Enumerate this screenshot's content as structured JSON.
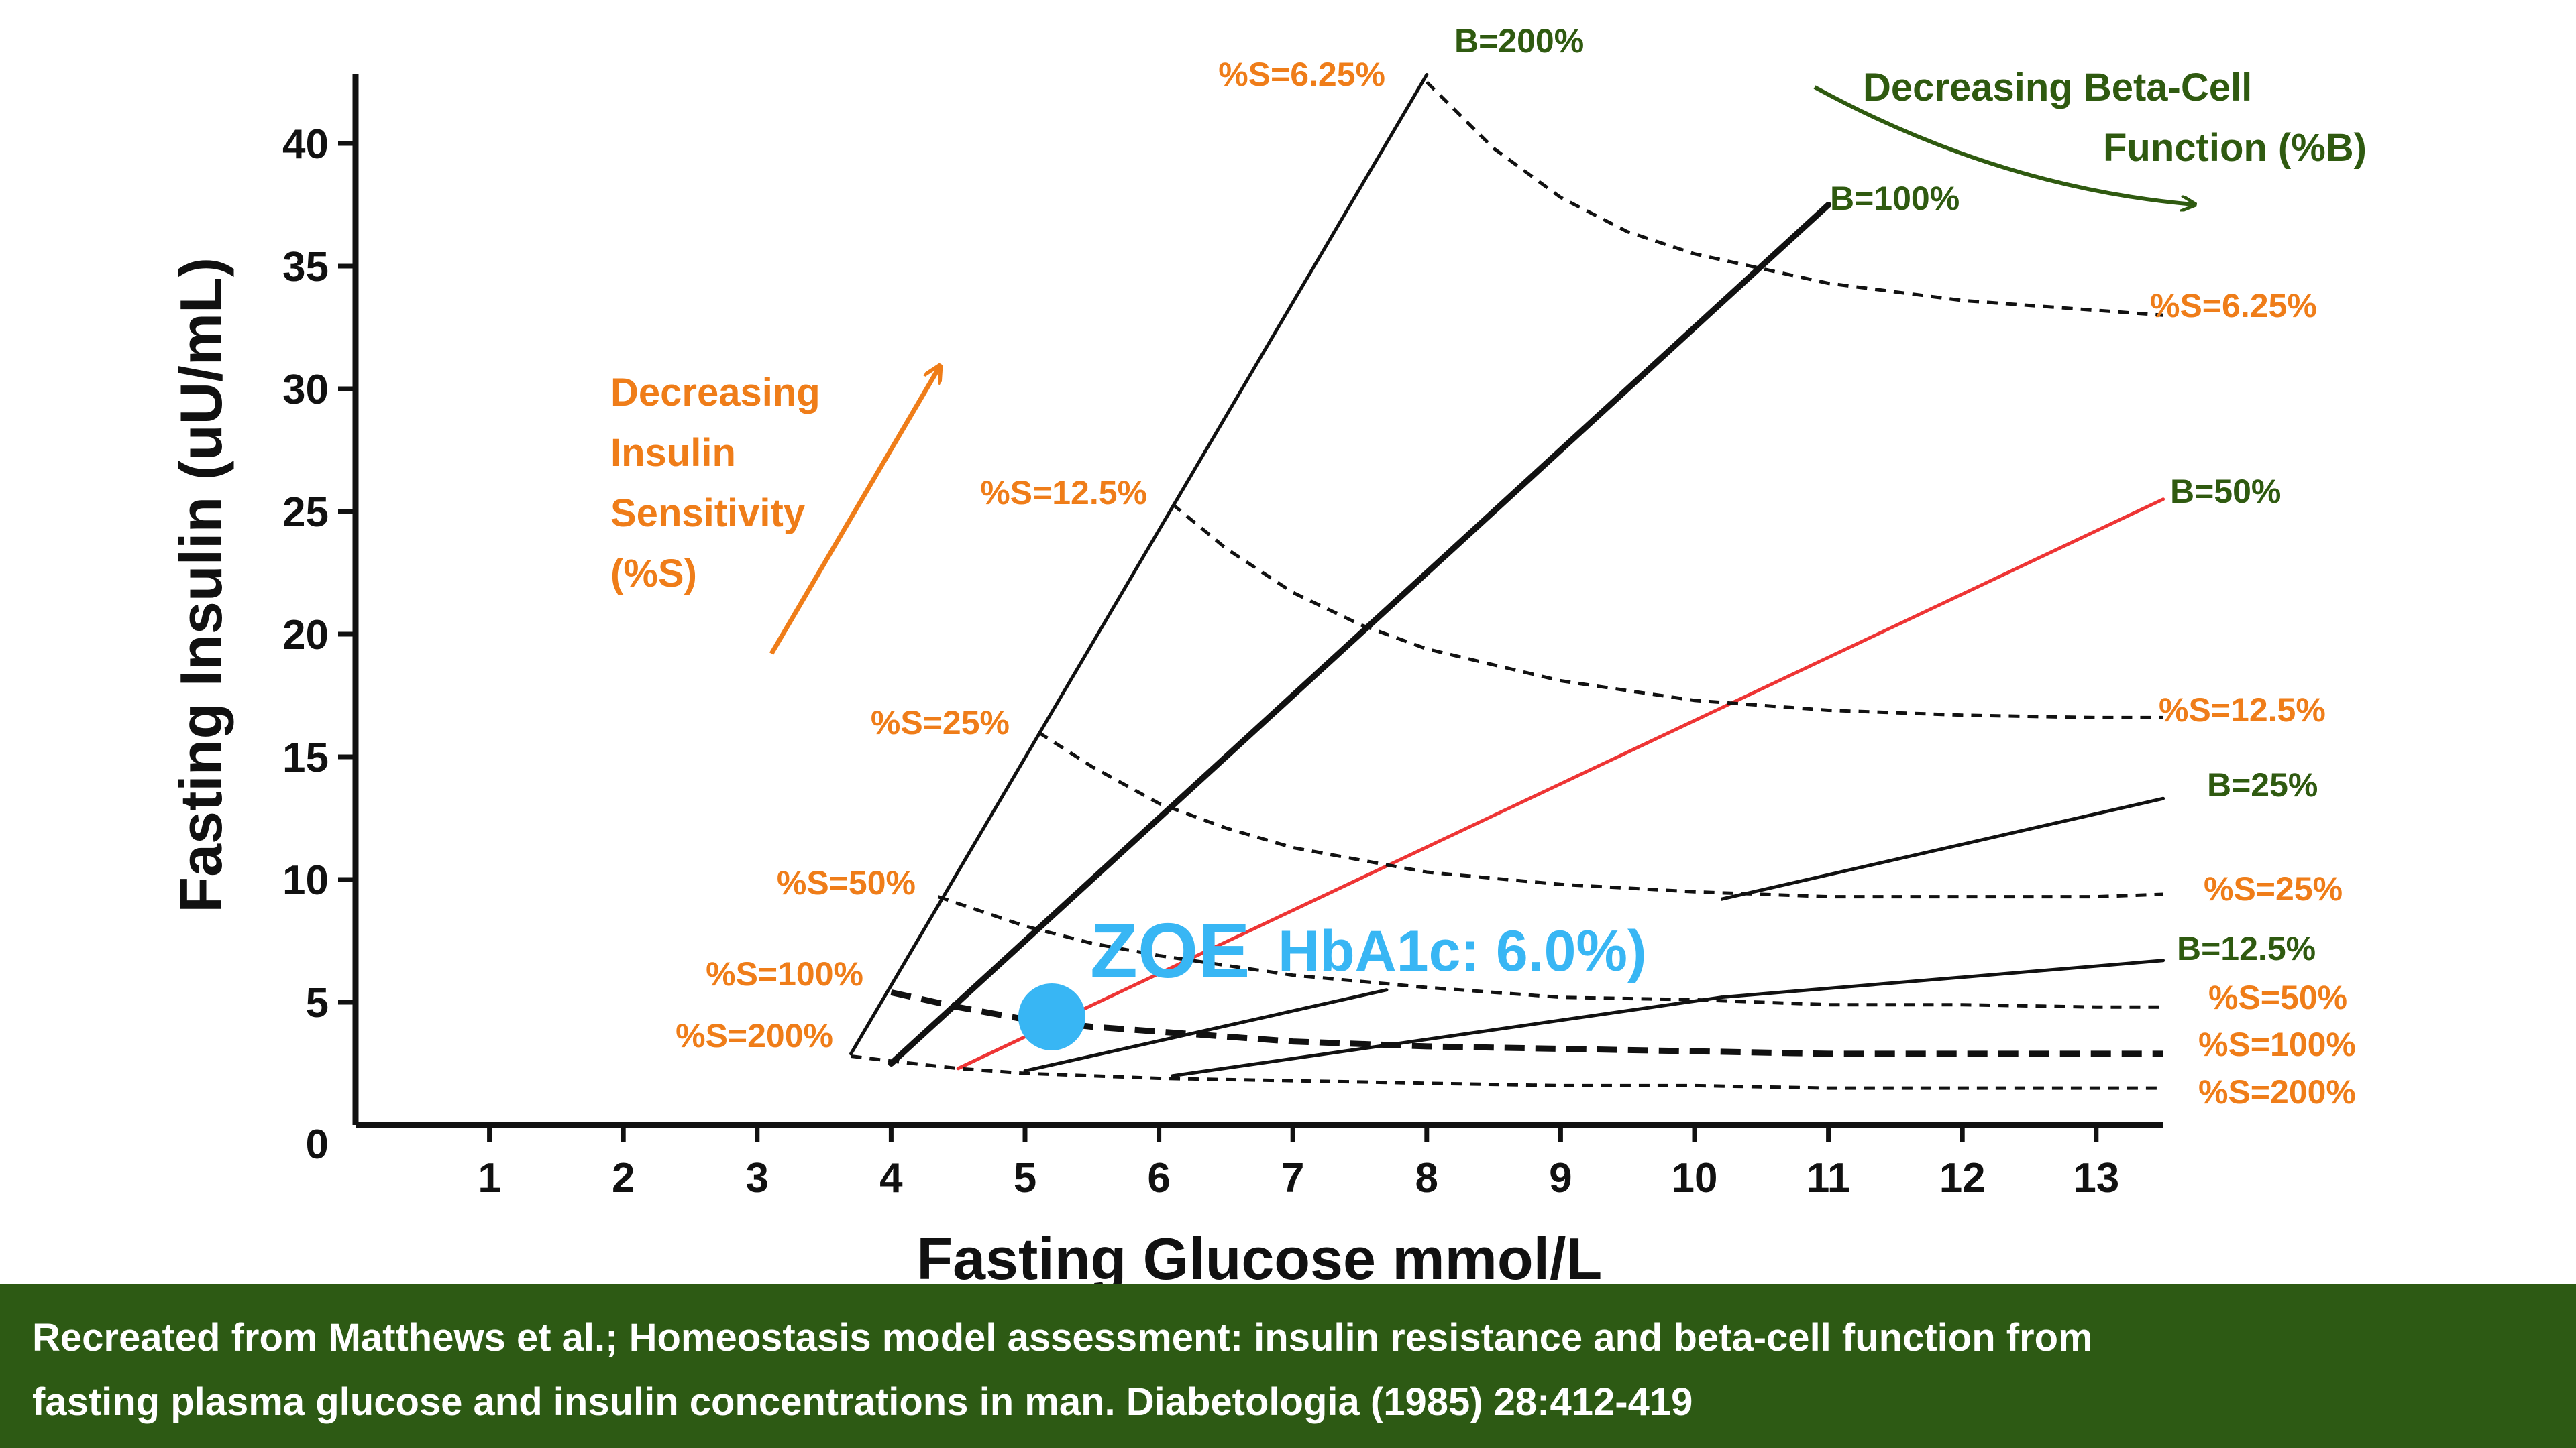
{
  "chart_data": {
    "type": "line",
    "title": "",
    "xlabel": "Fasting Glucose mmol/L",
    "ylabel": "Fasting Insulin (uU/mL)",
    "xlim": [
      0,
      13.5
    ],
    "ylim": [
      0,
      43
    ],
    "x_ticks": [
      "1",
      "2",
      "3",
      "4",
      "5",
      "6",
      "7",
      "8",
      "9",
      "10",
      "11",
      "12",
      "13"
    ],
    "y_ticks": [
      "5",
      "10",
      "15",
      "20",
      "25",
      "30",
      "35",
      "40"
    ],
    "origin_label": "0",
    "colors": {
      "beta_line": "#111111",
      "beta_50": "#ee3535",
      "sensitivity_curve": "#111111",
      "sensitivity_label": "#ef7d19",
      "beta_label": "#2f5a10",
      "zoe": "#38b6f4"
    },
    "beta_lines": [
      {
        "name": "B=200%",
        "x": [
          3.7,
          8.0
        ],
        "y": [
          2.9,
          42.8
        ],
        "color": "#111111"
      },
      {
        "name": "B=100%",
        "x": [
          4.0,
          11.0
        ],
        "y": [
          2.5,
          37.5
        ],
        "color": "#111111"
      },
      {
        "name": "B=50%",
        "x": [
          4.5,
          13.5
        ],
        "y": [
          2.3,
          25.5
        ],
        "color": "#ee3535"
      },
      {
        "name": "B=25%",
        "x": [
          10.2,
          13.5
        ],
        "y": [
          9.2,
          13.3
        ],
        "color": "#111111"
      },
      {
        "name": "B=12.5%",
        "x": [
          10.2,
          13.5
        ],
        "y": [
          5.2,
          6.7
        ],
        "color": "#111111"
      }
    ],
    "beta_lines_lower": [
      {
        "of": "B=25%",
        "x": [
          5.0,
          7.7
        ],
        "y": [
          2.2,
          5.5
        ]
      },
      {
        "of": "B=12.5%",
        "x": [
          6.1,
          10.2
        ],
        "y": [
          2.0,
          5.2
        ]
      }
    ],
    "sensitivity_curves": [
      {
        "name": "%S=6.25%",
        "x": [
          8.0,
          8.5,
          9.0,
          9.5,
          10.0,
          11.0,
          12.0,
          13.0,
          13.5
        ],
        "y": [
          42.5,
          39.8,
          37.8,
          36.4,
          35.5,
          34.3,
          33.6,
          33.2,
          33.0
        ]
      },
      {
        "name": "%S=12.5%",
        "x": [
          6.1,
          6.5,
          7.0,
          7.5,
          8.0,
          9.0,
          10.0,
          11.0,
          12.0,
          13.0,
          13.5
        ],
        "y": [
          25.3,
          23.5,
          21.7,
          20.4,
          19.4,
          18.1,
          17.3,
          16.9,
          16.7,
          16.6,
          16.6
        ]
      },
      {
        "name": "%S=25%",
        "x": [
          5.1,
          5.5,
          6.0,
          6.5,
          7.0,
          8.0,
          9.0,
          10.0,
          11.0,
          12.0,
          13.0,
          13.5
        ],
        "y": [
          16.0,
          14.6,
          13.1,
          12.1,
          11.3,
          10.3,
          9.8,
          9.5,
          9.3,
          9.3,
          9.3,
          9.4
        ]
      },
      {
        "name": "%S=50%",
        "x": [
          4.35,
          5.0,
          5.5,
          6.0,
          7.0,
          8.0,
          9.0,
          10.0,
          11.0,
          12.0,
          13.0,
          13.5
        ],
        "y": [
          9.3,
          8.1,
          7.4,
          6.9,
          6.1,
          5.6,
          5.2,
          5.1,
          4.9,
          4.9,
          4.8,
          4.8
        ]
      },
      {
        "name": "%S=100%",
        "x": [
          4.0,
          4.5,
          5.0,
          5.5,
          6.0,
          7.0,
          8.0,
          9.0,
          10.0,
          11.0,
          12.0,
          13.0,
          13.5
        ],
        "y": [
          5.4,
          4.8,
          4.3,
          4.0,
          3.8,
          3.4,
          3.2,
          3.1,
          3.0,
          2.9,
          2.9,
          2.9,
          2.9
        ]
      },
      {
        "name": "%S=200%",
        "x": [
          3.7,
          4.0,
          4.5,
          5.0,
          5.5,
          6.0,
          7.0,
          8.0,
          9.0,
          10.0,
          11.0,
          12.0,
          13.0,
          13.5
        ],
        "y": [
          2.8,
          2.6,
          2.3,
          2.1,
          2.0,
          1.9,
          1.8,
          1.7,
          1.6,
          1.6,
          1.5,
          1.5,
          1.5,
          1.5
        ]
      }
    ],
    "left_sensitivity_labels": [
      "%S=6.25%",
      "%S=12.5%",
      "%S=25%",
      "%S=50%",
      "%S=100%",
      "%S=200%"
    ],
    "right_sensitivity_labels": [
      "%S=6.25%",
      "%S=12.5%",
      "%S=25%",
      "%S=50%",
      "%S=100%",
      "%S=200%"
    ],
    "beta_labels": [
      "B=200%",
      "B=100%",
      "B=50%",
      "B=25%",
      "B=12.5%"
    ],
    "annotations": {
      "sensitivity_arrow": [
        "Decreasing",
        "Insulin",
        "Sensitivity",
        "(%S)"
      ],
      "beta_arrow": [
        "Decreasing Beta-Cell",
        "Function (%B)"
      ]
    },
    "zoe_point": {
      "x": 5.2,
      "y": 4.4,
      "label": "ZOE",
      "sublabel": "HbA1c: 6.0%)"
    }
  },
  "footer": {
    "line1": "Recreated from Matthews et al.; Homeostasis model assessment: insulin resistance and beta-cell function from",
    "line2": "fasting plasma glucose and insulin concentrations in man. Diabetologia (1985) 28:412-419"
  }
}
